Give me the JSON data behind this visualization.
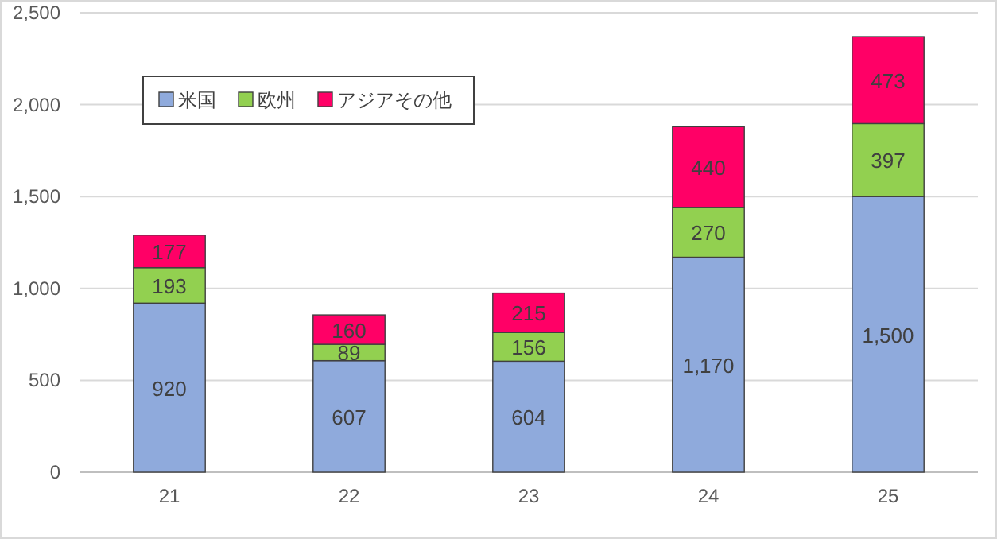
{
  "chart_data": {
    "type": "bar",
    "stacked": true,
    "categories": [
      "21",
      "22",
      "23",
      "24",
      "25"
    ],
    "series": [
      {
        "name": "米国",
        "color": "#8faadc",
        "values": [
          920,
          607,
          604,
          1170,
          1500
        ],
        "value_labels": [
          "920",
          "607",
          "604",
          "1,170",
          "1,500"
        ]
      },
      {
        "name": "欧州",
        "color": "#92d050",
        "values": [
          193,
          89,
          156,
          270,
          397
        ],
        "value_labels": [
          "193",
          "89",
          "156",
          "270",
          "397"
        ]
      },
      {
        "name": "アジアその他",
        "color": "#ff0066",
        "values": [
          177,
          160,
          215,
          440,
          473
        ],
        "value_labels": [
          "177",
          "160",
          "215",
          "440",
          "473"
        ]
      }
    ],
    "ylim": [
      0,
      2500
    ],
    "yticks": [
      {
        "value": 0,
        "label": "0"
      },
      {
        "value": 500,
        "label": "500"
      },
      {
        "value": 1000,
        "label": "1,000"
      },
      {
        "value": 1500,
        "label": "1,500"
      },
      {
        "value": 2000,
        "label": "2,000"
      },
      {
        "value": 2500,
        "label": "2,500"
      }
    ],
    "grid": "y",
    "legend": "top left"
  }
}
